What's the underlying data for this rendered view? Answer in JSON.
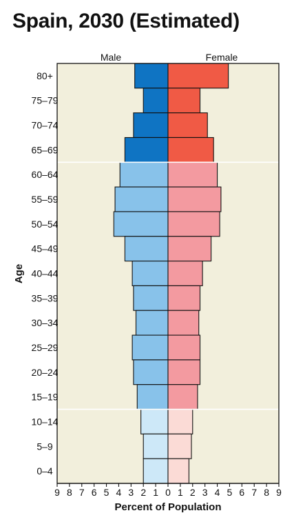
{
  "chart_data": {
    "type": "bar",
    "orientation": "horizontal-population-pyramid",
    "title": "Spain, 2030 (Estimated)",
    "xlabel": "Percent of Population",
    "ylabel": "Age",
    "xlim": [
      -9,
      9
    ],
    "x_ticks": [
      "9",
      "8",
      "7",
      "6",
      "5",
      "4",
      "3",
      "2",
      "1",
      "0",
      "1",
      "2",
      "3",
      "4",
      "5",
      "6",
      "7",
      "8",
      "9"
    ],
    "categories": [
      "80+",
      "75–79",
      "70–74",
      "65–69",
      "60–64",
      "55–59",
      "50–54",
      "45–49",
      "40–44",
      "35–39",
      "30–34",
      "25–29",
      "20–24",
      "15–19",
      "10–14",
      "5–9",
      "0–4"
    ],
    "series": [
      {
        "name": "Male",
        "values": [
          2.7,
          2.0,
          2.8,
          3.5,
          3.9,
          4.3,
          4.4,
          3.5,
          2.9,
          2.8,
          2.6,
          2.9,
          2.8,
          2.5,
          2.2,
          2.0,
          2.0
        ]
      },
      {
        "name": "Female",
        "values": [
          4.9,
          2.6,
          3.2,
          3.7,
          4.0,
          4.3,
          4.2,
          3.5,
          2.8,
          2.6,
          2.5,
          2.6,
          2.6,
          2.4,
          2.0,
          1.9,
          1.7
        ]
      }
    ],
    "age_groups": {
      "old": [
        "80+",
        "75–79",
        "70–74",
        "65–69"
      ],
      "working": [
        "60–64",
        "55–59",
        "50–54",
        "45–49",
        "40–44",
        "35–39",
        "30–34",
        "25–29",
        "20–24",
        "15–19"
      ],
      "young": [
        "10–14",
        "5–9",
        "0–4"
      ]
    },
    "colors": {
      "plot_background": "#f2efdc",
      "male_old": "#0f74c3",
      "male_working": "#88c2ea",
      "male_young": "#cde8f8",
      "female_old": "#f05a45",
      "female_working": "#f39aa0",
      "female_young": "#fbdbd6",
      "separator": "#ffffff",
      "outline": "#111111"
    },
    "grid": false,
    "legend": "top, above plot: Male left, Female right"
  }
}
